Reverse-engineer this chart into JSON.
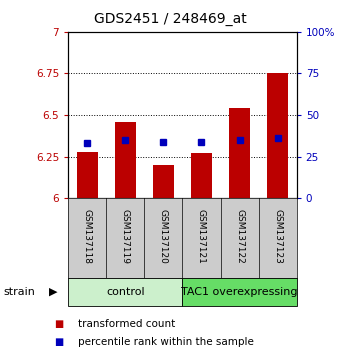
{
  "title": "GDS2451 / 248469_at",
  "samples": [
    "GSM137118",
    "GSM137119",
    "GSM137120",
    "GSM137121",
    "GSM137122",
    "GSM137123"
  ],
  "red_values": [
    6.28,
    6.46,
    6.2,
    6.27,
    6.54,
    6.75
  ],
  "blue_values": [
    6.33,
    6.35,
    6.34,
    6.34,
    6.35,
    6.36
  ],
  "ylim_left": [
    6.0,
    7.0
  ],
  "yticks_left": [
    6.0,
    6.25,
    6.5,
    6.75,
    7.0
  ],
  "ytick_labels_left": [
    "6",
    "6.25",
    "6.5",
    "6.75",
    "7"
  ],
  "ylim_right": [
    0,
    100
  ],
  "yticks_right": [
    0,
    25,
    50,
    75,
    100
  ],
  "ytick_labels_right": [
    "0",
    "25",
    "50",
    "75",
    "100%"
  ],
  "bar_base": 6.0,
  "bar_width": 0.55,
  "red_color": "#bb0000",
  "blue_color": "#0000bb",
  "blue_marker_size": 5,
  "bg_color": "#ffffff",
  "sample_box_color": "#cccccc",
  "ctrl_color": "#ccf0cc",
  "tac1_color": "#66dd66",
  "title_fontsize": 10,
  "axis_fontsize": 8,
  "tick_fontsize": 7.5,
  "sample_fontsize": 6.5,
  "group_fontsize": 8,
  "legend_fontsize": 7.5,
  "strain_fontsize": 8,
  "legend_red": "transformed count",
  "legend_blue": "percentile rank within the sample"
}
